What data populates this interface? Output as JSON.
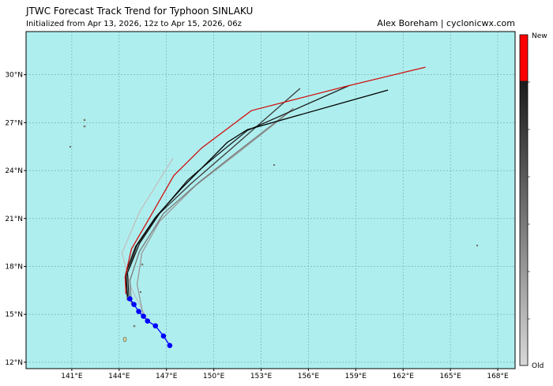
{
  "chart_data": {
    "type": "track-map",
    "title": "JTWC Forecast Track Trend for Typhoon SINLAKU",
    "subtitle": "Initialized from Apr 13, 2026, 12z to Apr 15, 2026, 06z",
    "credit": "Alex Boreham | cyclonicwx.com",
    "xlim": [
      138.1,
      169.1
    ],
    "ylim": [
      11.6,
      32.7
    ],
    "xticks": [
      {
        "value": 141,
        "label": "141°E"
      },
      {
        "value": 144,
        "label": "144°E"
      },
      {
        "value": 147,
        "label": "147°E"
      },
      {
        "value": 150,
        "label": "150°E"
      },
      {
        "value": 153,
        "label": "153°E"
      },
      {
        "value": 156,
        "label": "156°E"
      },
      {
        "value": 159,
        "label": "159°E"
      },
      {
        "value": 162,
        "label": "162°E"
      },
      {
        "value": 165,
        "label": "165°E"
      },
      {
        "value": 168,
        "label": "168°E"
      }
    ],
    "yticks": [
      {
        "value": 12,
        "label": "12°N"
      },
      {
        "value": 15,
        "label": "15°N"
      },
      {
        "value": 18,
        "label": "18°N"
      },
      {
        "value": 21,
        "label": "21°N"
      },
      {
        "value": 24,
        "label": "24°N"
      },
      {
        "value": 27,
        "label": "27°N"
      },
      {
        "value": 30,
        "label": "30°N"
      }
    ],
    "grid": true,
    "colorbar": {
      "top_label": "New",
      "bottom_label": "Old"
    },
    "series": [
      {
        "color": "#c0c0c0",
        "x": [
          145.8,
          144.78,
          144.18,
          145.29,
          147.42
        ],
        "values": [
          14.63,
          16.61,
          18.84,
          21.41,
          24.78
        ]
      },
      {
        "color": "#999999",
        "x": [
          145.54,
          145.14,
          145.44,
          146.56,
          148.83,
          151.62,
          154.91
        ],
        "values": [
          14.88,
          16.86,
          18.84,
          20.82,
          23.05,
          25.18,
          27.75
        ]
      },
      {
        "color": "#7a7a7a",
        "x": [
          144.78,
          144.68,
          145.29,
          146.81,
          149.09,
          151.62,
          155.06
        ],
        "values": [
          15.62,
          17.11,
          18.94,
          21.31,
          23.29,
          25.27,
          27.9
        ]
      },
      {
        "color": "#3a3a3a",
        "x": [
          144.53,
          144.43,
          145.14,
          146.45,
          148.58,
          151.11,
          155.47
        ],
        "values": [
          15.87,
          17.35,
          19.33,
          21.21,
          23.2,
          25.37,
          29.14
        ]
      },
      {
        "color": "#1a1a1a",
        "x": [
          144.63,
          144.53,
          145.29,
          146.56,
          148.33,
          150.1,
          152.13,
          158.61
        ],
        "values": [
          15.97,
          17.6,
          19.43,
          21.31,
          23.39,
          24.88,
          26.51,
          29.33
        ]
      },
      {
        "color": "#000000",
        "x": [
          144.53,
          144.43,
          145.04,
          146.3,
          147.97,
          150.86,
          152.13,
          161.04
        ],
        "values": [
          16.12,
          17.6,
          19.23,
          21.07,
          22.9,
          25.77,
          26.56,
          29.04
        ]
      },
      {
        "color": "#d01010",
        "x": [
          144.43,
          144.38,
          144.78,
          145.8,
          147.47,
          149.24,
          152.38,
          158.61,
          163.42
        ],
        "values": [
          16.26,
          17.35,
          19.09,
          20.82,
          23.69,
          25.42,
          27.75,
          29.33,
          30.47
        ]
      },
      {
        "color": "#0000ff",
        "marker": "o",
        "x": [
          147.21,
          146.81,
          146.3,
          145.8,
          145.54,
          145.24,
          144.94,
          144.68
        ],
        "values": [
          13.05,
          13.64,
          14.28,
          14.58,
          14.88,
          15.18,
          15.62,
          15.97
        ]
      }
    ]
  }
}
